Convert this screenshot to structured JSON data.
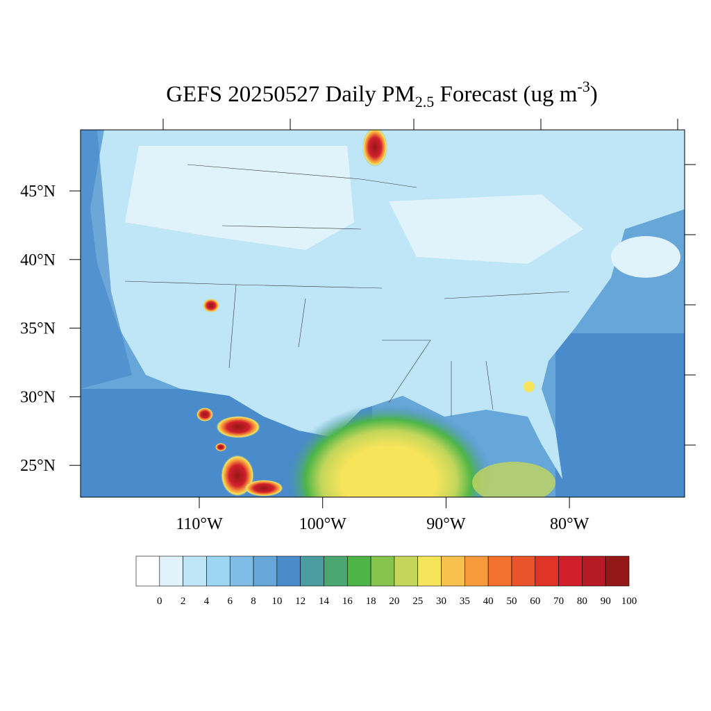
{
  "title": {
    "main": "GEFS 20250527 Daily PM",
    "sub": "2.5",
    "middle": " Forecast (ug m",
    "sup": "-3",
    "end": ")"
  },
  "map": {
    "lat_labels": [
      "45°N",
      "40°N",
      "35°N",
      "30°N",
      "25°N"
    ],
    "lon_labels": [
      "110°W",
      "100°W",
      "90°W",
      "80°W"
    ]
  },
  "colorbar": {
    "levels": [
      0,
      2,
      4,
      6,
      8,
      10,
      12,
      14,
      16,
      18,
      20,
      25,
      30,
      35,
      40,
      50,
      60,
      70,
      80,
      90,
      100
    ],
    "colors": [
      "#ffffff",
      "#e0f3fb",
      "#bfe6f7",
      "#9dd6f3",
      "#80bde6",
      "#66a6d9",
      "#4a8bcb",
      "#4b9ca0",
      "#4aa76f",
      "#4db548",
      "#86c44e",
      "#c3d65a",
      "#f6e45b",
      "#f8c04d",
      "#f79a3c",
      "#f2712f",
      "#e9542b",
      "#e03427",
      "#d1202c",
      "#b61b25",
      "#951818"
    ]
  }
}
